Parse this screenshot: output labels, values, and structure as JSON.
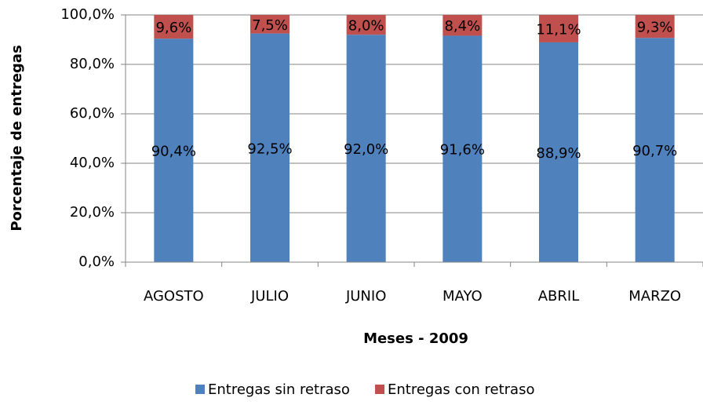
{
  "chart_data": {
    "type": "stacked_bar",
    "x_label": "Meses - 2009",
    "y_label": "Porcentaje de entregas",
    "categories": [
      "AGOSTO",
      "JULIO",
      "JUNIO",
      "MAYO",
      "ABRIL",
      "MARZO"
    ],
    "series": [
      {
        "name": "Entregas sin retraso",
        "color": "#4f81bd",
        "values": [
          90.4,
          92.5,
          92.0,
          91.6,
          88.9,
          90.7
        ],
        "value_labels": [
          "90,4%",
          "92,5%",
          "92,0%",
          "91,6%",
          "88,9%",
          "90,7%"
        ]
      },
      {
        "name": "Entregas con retraso",
        "color": "#c0504d",
        "values": [
          9.6,
          7.5,
          8.0,
          8.4,
          11.1,
          9.3
        ],
        "value_labels": [
          "9,6%",
          "7,5%",
          "8,0%",
          "8,4%",
          "11,1%",
          "9,3%"
        ]
      }
    ],
    "ylim": [
      0,
      100
    ],
    "yticks": [
      {
        "value": 0,
        "label": "0,0%"
      },
      {
        "value": 20,
        "label": "20,0%"
      },
      {
        "value": 40,
        "label": "40,0%"
      },
      {
        "value": 60,
        "label": "60,0%"
      },
      {
        "value": 80,
        "label": "80,0%"
      },
      {
        "value": 100,
        "label": "100,0%"
      }
    ],
    "grid": true,
    "legend": "bottom"
  }
}
